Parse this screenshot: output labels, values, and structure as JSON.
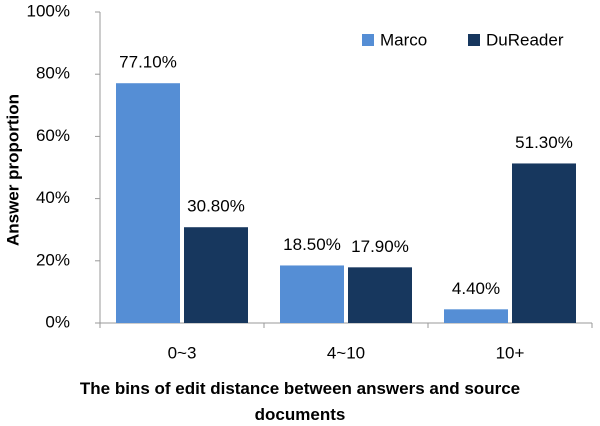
{
  "chart_data": {
    "type": "bar",
    "x_label": "The bins of edit distance between answers and source documents",
    "y_label": "Answer proportion",
    "categories": [
      "0~3",
      "4~10",
      "10+"
    ],
    "series": [
      {
        "name": "Marco",
        "color": "#558ed5",
        "values": [
          77.1,
          18.5,
          4.4
        ],
        "value_labels": [
          "77.10%",
          "18.50%",
          "4.40%"
        ]
      },
      {
        "name": "DuReader",
        "color": "#17375e",
        "values": [
          30.8,
          17.9,
          51.3
        ],
        "value_labels": [
          "30.80%",
          "17.90%",
          "51.30%"
        ]
      }
    ],
    "ylim": [
      0,
      100
    ],
    "yticks": [
      {
        "value": 0,
        "label": "0%"
      },
      {
        "value": 20,
        "label": "20%"
      },
      {
        "value": 40,
        "label": "40%"
      },
      {
        "value": 60,
        "label": "60%"
      },
      {
        "value": 80,
        "label": "80%"
      },
      {
        "value": 100,
        "label": "100%"
      }
    ],
    "legend": "upper right"
  }
}
